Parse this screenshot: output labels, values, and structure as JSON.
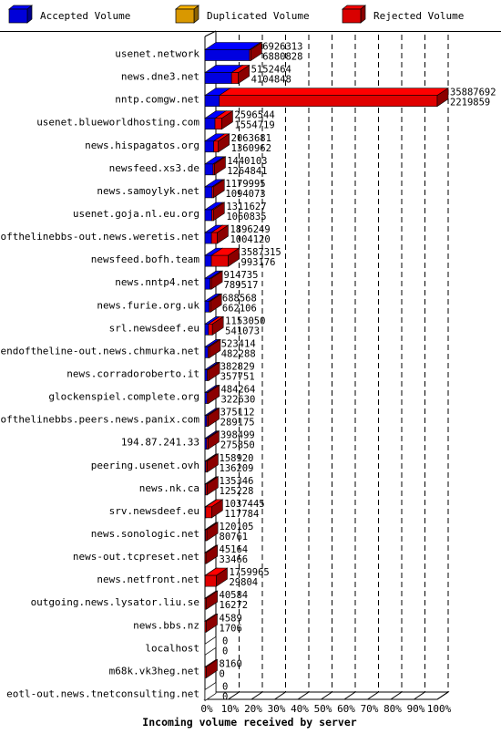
{
  "legend": [
    {
      "label": "Accepted Volume",
      "color": "#0000ff"
    },
    {
      "label": "Duplicated Volume",
      "color": "#ffb300"
    },
    {
      "label": "Rejected Volume",
      "color": "#ff0000"
    }
  ],
  "chart_data": {
    "type": "bar",
    "orientation": "horizontal",
    "stacked": true,
    "xlabel": "Incoming volume received by server",
    "x_ticks": [
      "0%",
      "10%",
      "20%",
      "30%",
      "40%",
      "50%",
      "60%",
      "70%",
      "80%",
      "90%",
      "100%"
    ],
    "xlim": [
      0,
      100
    ],
    "grid": "dashed vertical",
    "legend_position": "top",
    "categories": [
      "usenet.network",
      "news.dne3.net",
      "nntp.comgw.net",
      "usenet.blueworldhosting.com",
      "news.hispagatos.org",
      "newsfeed.xs3.de",
      "news.samoylyk.net",
      "usenet.goja.nl.eu.org",
      "endofthelinebbs-out.news.weretis.net",
      "newsfeed.bofh.team",
      "news.nntp4.net",
      "news.furie.org.uk",
      "srl.newsdeef.eu",
      "endoftheline-out.news.chmurka.net",
      "news.corradoroberto.it",
      "glockenspiel.complete.org",
      "endofthelinebbs.peers.news.panix.com",
      "194.87.241.33",
      "peering.usenet.ovh",
      "news.nk.ca",
      "srv.newsdeef.eu",
      "news.sonologic.net",
      "news-out.tcpreset.net",
      "news.netfront.net",
      "outgoing.news.lysator.liu.se",
      "news.bbs.nz",
      "localhost",
      "m68k.vk3heg.net",
      "eotl-out.news.tnetconsulting.net"
    ],
    "total_volume": [
      "6926313",
      "5152464",
      "35887692",
      "2596544",
      "2063681",
      "1440103",
      "1179995",
      "1311627",
      "1896249",
      "3587315",
      "914735",
      "688568",
      "1153050",
      "523414",
      "382829",
      "484264",
      "375112",
      "398499",
      "158920",
      "135346",
      "1037445",
      "120105",
      "45164",
      "1759965",
      "40584",
      "4589",
      "0",
      "8160",
      "0"
    ],
    "accepted_volume": [
      "6880828",
      "4104848",
      "2219859",
      "1554719",
      "1360962",
      "1264841",
      "1094073",
      "1060835",
      "1004120",
      "993176",
      "789517",
      "662106",
      "541073",
      "482288",
      "357751",
      "322630",
      "289175",
      "275850",
      "136209",
      "125228",
      "117784",
      "80761",
      "33466",
      "29804",
      "16272",
      "1706",
      "0",
      "0",
      "0"
    ],
    "series": [
      {
        "name": "Accepted Volume",
        "values": [
          19.17,
          11.44,
          6.19,
          4.33,
          3.79,
          3.52,
          3.05,
          2.96,
          2.8,
          2.77,
          2.2,
          1.84,
          1.51,
          1.34,
          1.0,
          0.9,
          0.81,
          0.77,
          0.38,
          0.35,
          0.33,
          0.23,
          0.09,
          0.08,
          0.05,
          0.005,
          0,
          0,
          0
        ]
      },
      {
        "name": "Duplicated Volume",
        "values": [
          0,
          0,
          0,
          0,
          0,
          0,
          0,
          0,
          0,
          0,
          0,
          0,
          0,
          0,
          0,
          0,
          0,
          0,
          0,
          0,
          0,
          0,
          0,
          0,
          0,
          0,
          0,
          0,
          0
        ]
      },
      {
        "name": "Rejected Volume",
        "values": [
          0.13,
          2.92,
          93.81,
          2.9,
          1.96,
          0.49,
          0.24,
          0.7,
          2.48,
          7.23,
          0.35,
          0.08,
          1.7,
          0.12,
          0.07,
          0.45,
          0.24,
          0.34,
          0.06,
          0.03,
          2.56,
          0.11,
          0.03,
          4.82,
          0.07,
          0.008,
          0,
          0.02,
          0
        ]
      }
    ]
  }
}
